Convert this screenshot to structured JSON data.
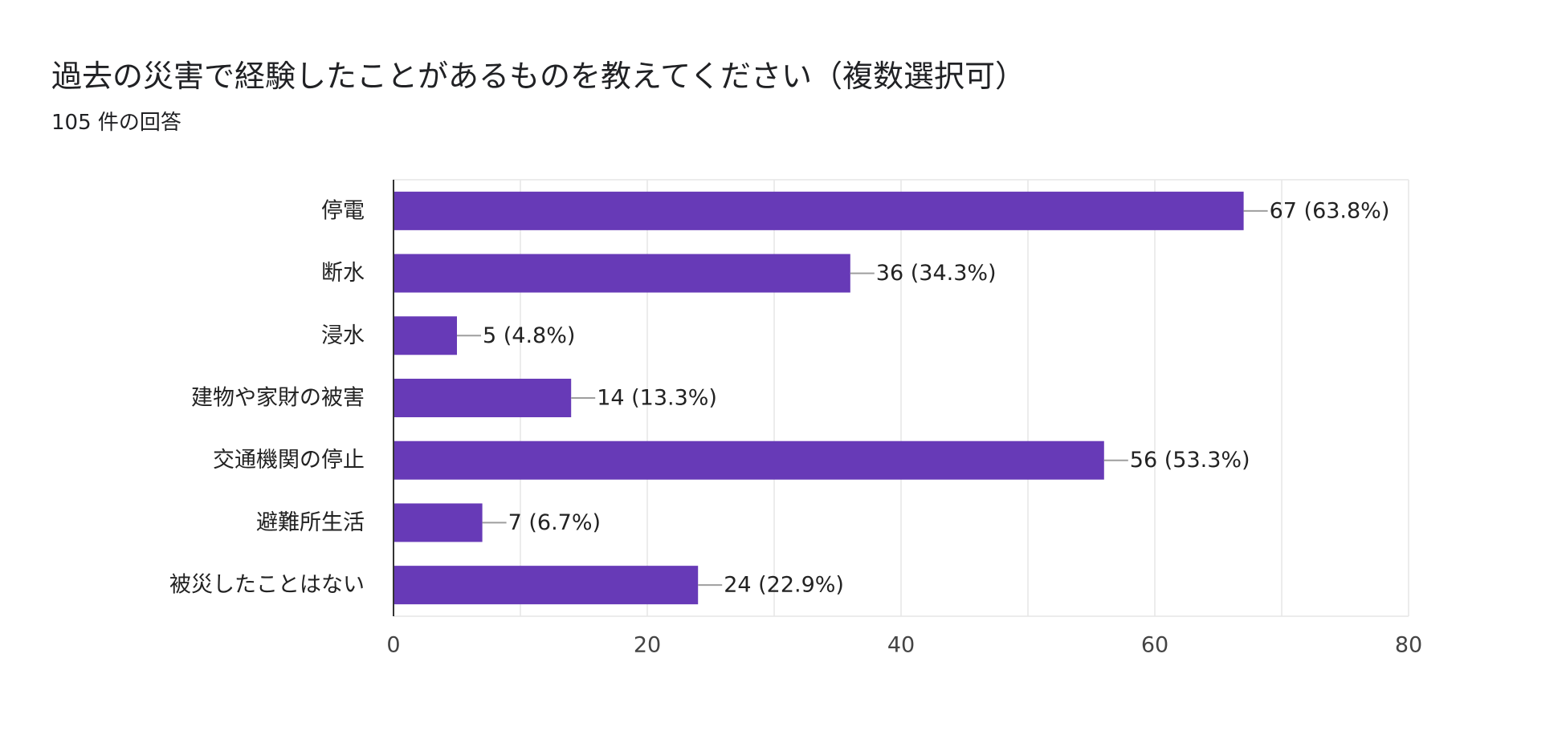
{
  "header": {
    "title": "過去の災害で経験したことがあるものを教えてください（複数選択可）",
    "response_count": "105 件の回答"
  },
  "colors": {
    "bar": "#673ab7",
    "grid": "#e6e6e6",
    "axis": "#333333",
    "leader": "#9e9e9e"
  },
  "chart_data": {
    "type": "bar",
    "orientation": "horizontal",
    "title": "過去の災害で経験したことがあるものを教えてください（複数選択可）",
    "categories": [
      "停電",
      "断水",
      "浸水",
      "建物や家財の被害",
      "交通機関の停止",
      "避難所生活",
      "被災したことはない"
    ],
    "values": [
      67,
      36,
      5,
      14,
      56,
      7,
      24
    ],
    "value_labels": [
      "67 (63.8%)",
      "36 (34.3%)",
      "5 (4.8%)",
      "14 (13.3%)",
      "56 (53.3%)",
      "7 (6.7%)",
      "24 (22.9%)"
    ],
    "xlim": [
      0,
      80
    ],
    "xticks": [
      0,
      20,
      40,
      60,
      80
    ],
    "minor_grid_step": 10,
    "xlabel": "",
    "ylabel": "",
    "grid": true,
    "legend": "none"
  }
}
